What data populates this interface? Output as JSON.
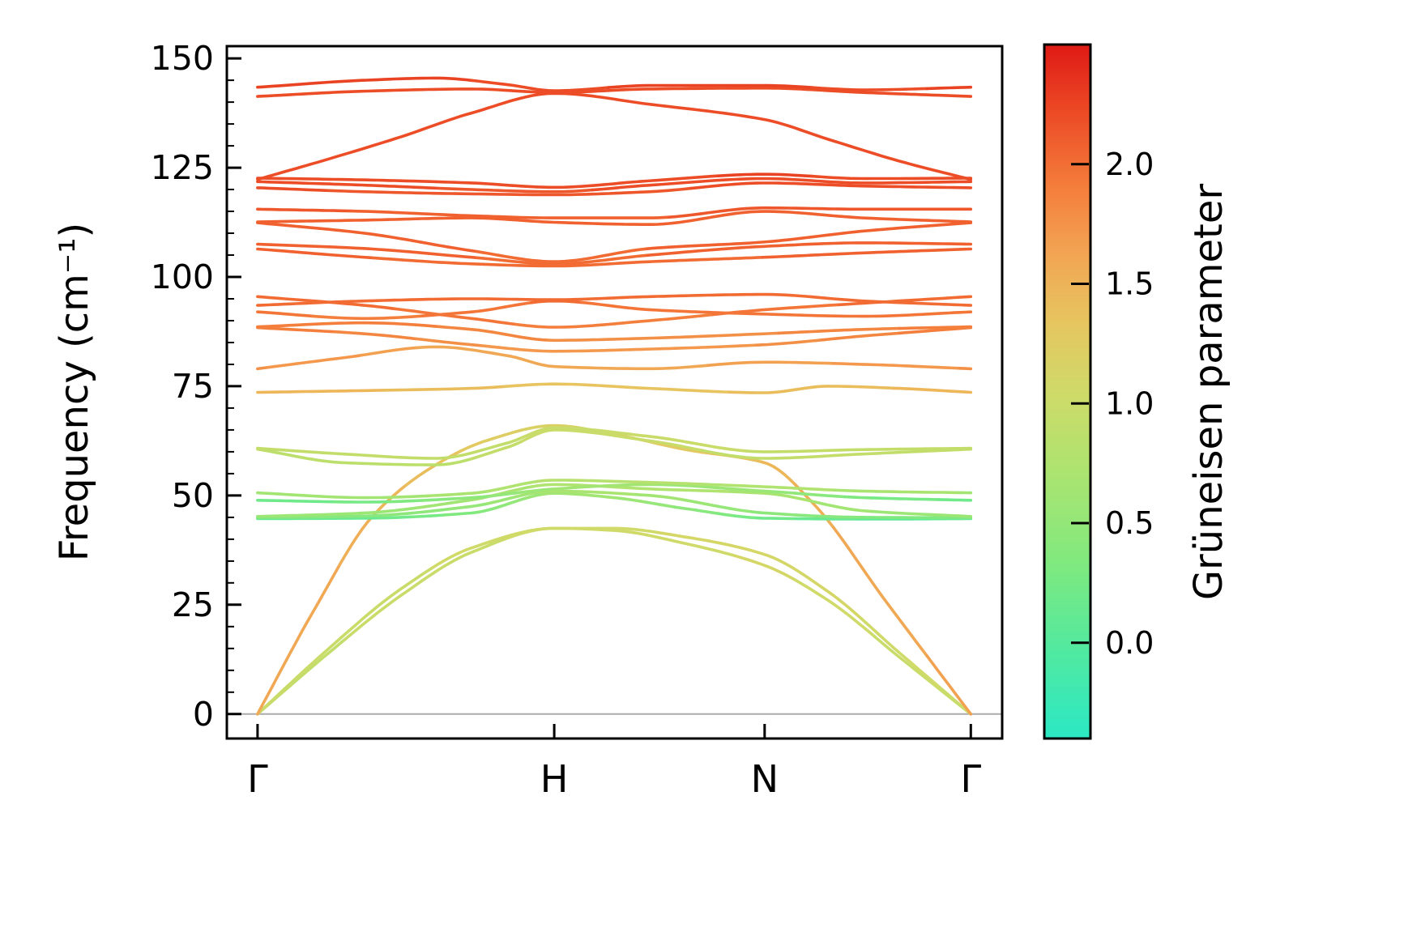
{
  "figure": {
    "background": "#ffffff"
  },
  "chart_data": {
    "type": "line",
    "subtype": "phonon-dispersion-colored-by-gruneisen",
    "title": "",
    "xlabel": "",
    "ylabel": "Frequency (cm⁻¹)",
    "x_tick_labels": [
      "Γ",
      "H",
      "N",
      "Γ"
    ],
    "x_tick_positions": [
      0,
      0.416,
      0.711,
      1.0
    ],
    "y_ticks": [
      0,
      25,
      50,
      75,
      100,
      125,
      150
    ],
    "y_minor_step": 5,
    "ylim": [
      -5.6,
      152.8
    ],
    "xlim": [
      -0.043,
      1.044
    ],
    "grid": false,
    "zero_line_color": "#ababab",
    "line_width": 3.6,
    "colorbar": {
      "label": "Grüneisen parameter",
      "ticks": [
        "0.0",
        "0.5",
        "1.0",
        "1.5",
        "2.0"
      ],
      "tick_values": [
        0.0,
        0.5,
        1.0,
        1.5,
        2.0
      ],
      "vmin": -0.4,
      "vmax": 2.5,
      "gradient_stops": [
        [
          0.0,
          "#2BE8C4"
        ],
        [
          0.12,
          "#4FE9A2"
        ],
        [
          0.25,
          "#7FE97F"
        ],
        [
          0.38,
          "#ABE470"
        ],
        [
          0.5,
          "#CFDA68"
        ],
        [
          0.6,
          "#E6C55F"
        ],
        [
          0.7,
          "#F2A453"
        ],
        [
          0.8,
          "#F47B3A"
        ],
        [
          0.9,
          "#EC4B26"
        ],
        [
          1.0,
          "#DF1A15"
        ]
      ]
    },
    "bands": [
      [
        [
          0,
          0,
          0.95
        ],
        [
          0.1,
          14,
          0.95
        ],
        [
          0.2,
          27,
          1.0
        ],
        [
          0.3,
          37,
          1.0
        ],
        [
          0.416,
          42.5,
          1.05
        ],
        [
          0.5,
          42,
          1.05
        ],
        [
          0.6,
          39,
          1.05
        ],
        [
          0.711,
          34,
          1.1
        ],
        [
          0.8,
          26,
          1.05
        ],
        [
          0.9,
          13,
          1.0
        ],
        [
          1,
          0,
          0.95
        ]
      ],
      [
        [
          0,
          0,
          1.0
        ],
        [
          0.1,
          15,
          1.0
        ],
        [
          0.2,
          28.5,
          1.0
        ],
        [
          0.3,
          38,
          1.05
        ],
        [
          0.416,
          42.5,
          1.05
        ],
        [
          0.5,
          42.5,
          1.05
        ],
        [
          0.6,
          40.5,
          1.1
        ],
        [
          0.711,
          36.5,
          1.1
        ],
        [
          0.8,
          28,
          1.1
        ],
        [
          0.9,
          14,
          1.05
        ],
        [
          1,
          0,
          1.0
        ]
      ],
      [
        [
          0,
          0,
          1.6
        ],
        [
          0.08,
          24,
          1.6
        ],
        [
          0.16,
          45,
          1.5
        ],
        [
          0.24,
          56,
          1.4
        ],
        [
          0.32,
          62.5,
          1.25
        ],
        [
          0.416,
          66,
          1.15
        ],
        [
          0.5,
          64,
          1.2
        ],
        [
          0.6,
          60.5,
          1.3
        ],
        [
          0.711,
          57.5,
          1.45
        ],
        [
          0.78,
          48,
          1.55
        ],
        [
          0.88,
          26,
          1.6
        ],
        [
          1,
          0,
          1.65
        ]
      ],
      [
        [
          0,
          44.7,
          0.1
        ],
        [
          0.15,
          44.8,
          0.15
        ],
        [
          0.3,
          46,
          0.35
        ],
        [
          0.416,
          50.5,
          0.65
        ],
        [
          0.5,
          49.5,
          0.6
        ],
        [
          0.6,
          47,
          0.45
        ],
        [
          0.711,
          44.8,
          0.2
        ],
        [
          0.85,
          44.6,
          0.1
        ],
        [
          1,
          44.7,
          0.1
        ]
      ],
      [
        [
          0,
          44.9,
          0.35
        ],
        [
          0.15,
          45.3,
          0.4
        ],
        [
          0.3,
          47.5,
          0.5
        ],
        [
          0.416,
          51,
          0.7
        ],
        [
          0.55,
          50,
          0.65
        ],
        [
          0.711,
          46,
          0.45
        ],
        [
          0.85,
          45,
          0.35
        ],
        [
          1,
          44.9,
          0.35
        ]
      ],
      [
        [
          0,
          45.2,
          0.55
        ],
        [
          0.15,
          46,
          0.55
        ],
        [
          0.3,
          49,
          0.65
        ],
        [
          0.416,
          52.5,
          0.75
        ],
        [
          0.55,
          51.5,
          0.75
        ],
        [
          0.711,
          50.5,
          0.7
        ],
        [
          0.85,
          46.5,
          0.6
        ],
        [
          1,
          45.2,
          0.55
        ]
      ],
      [
        [
          0,
          48.9,
          0.2
        ],
        [
          0.15,
          48.5,
          0.25
        ],
        [
          0.3,
          49.5,
          0.45
        ],
        [
          0.416,
          51.5,
          0.6
        ],
        [
          0.55,
          52.5,
          0.6
        ],
        [
          0.711,
          51,
          0.55
        ],
        [
          0.85,
          49.5,
          0.3
        ],
        [
          1,
          48.9,
          0.2
        ]
      ],
      [
        [
          0,
          50.6,
          0.65
        ],
        [
          0.15,
          49.5,
          0.6
        ],
        [
          0.3,
          50.5,
          0.7
        ],
        [
          0.416,
          53.5,
          0.8
        ],
        [
          0.55,
          53,
          0.8
        ],
        [
          0.711,
          52,
          0.75
        ],
        [
          0.85,
          51,
          0.7
        ],
        [
          1,
          50.6,
          0.65
        ]
      ],
      [
        [
          0,
          60.6,
          0.9
        ],
        [
          0.12,
          57.5,
          0.85
        ],
        [
          0.25,
          57,
          0.85
        ],
        [
          0.35,
          61,
          0.95
        ],
        [
          0.416,
          65,
          1.0
        ],
        [
          0.55,
          62.5,
          1.0
        ],
        [
          0.711,
          58.5,
          0.9
        ],
        [
          0.85,
          59.5,
          0.9
        ],
        [
          1,
          60.6,
          0.9
        ]
      ],
      [
        [
          0,
          60.8,
          0.95
        ],
        [
          0.12,
          59.5,
          0.9
        ],
        [
          0.25,
          58.5,
          0.9
        ],
        [
          0.35,
          62,
          0.95
        ],
        [
          0.416,
          65.5,
          1.0
        ],
        [
          0.55,
          63.5,
          1.0
        ],
        [
          0.711,
          60,
          0.95
        ],
        [
          0.85,
          60.5,
          0.95
        ],
        [
          1,
          60.8,
          0.95
        ]
      ],
      [
        [
          0,
          73.6,
          1.45
        ],
        [
          0.15,
          74,
          1.45
        ],
        [
          0.3,
          74.5,
          1.4
        ],
        [
          0.416,
          75.5,
          1.35
        ],
        [
          0.55,
          74.5,
          1.35
        ],
        [
          0.711,
          73.5,
          1.4
        ],
        [
          0.8,
          75,
          1.4
        ],
        [
          0.9,
          74.5,
          1.45
        ],
        [
          1,
          73.6,
          1.45
        ]
      ],
      [
        [
          0,
          79,
          1.75
        ],
        [
          0.12,
          81.5,
          1.7
        ],
        [
          0.25,
          84,
          1.6
        ],
        [
          0.35,
          82,
          1.6
        ],
        [
          0.416,
          79.5,
          1.6
        ],
        [
          0.55,
          79,
          1.6
        ],
        [
          0.711,
          80.5,
          1.65
        ],
        [
          0.85,
          80,
          1.7
        ],
        [
          1,
          79,
          1.75
        ]
      ],
      [
        [
          0,
          88.4,
          1.9
        ],
        [
          0.15,
          87,
          1.85
        ],
        [
          0.3,
          84.5,
          1.75
        ],
        [
          0.416,
          83,
          1.7
        ],
        [
          0.55,
          83.5,
          1.7
        ],
        [
          0.711,
          84.5,
          1.75
        ],
        [
          0.85,
          86.5,
          1.85
        ],
        [
          1,
          88.4,
          1.9
        ]
      ],
      [
        [
          0,
          88.6,
          1.9
        ],
        [
          0.15,
          89.5,
          1.9
        ],
        [
          0.3,
          88,
          1.85
        ],
        [
          0.416,
          85.5,
          1.8
        ],
        [
          0.55,
          86,
          1.8
        ],
        [
          0.711,
          87,
          1.8
        ],
        [
          0.85,
          88,
          1.85
        ],
        [
          1,
          88.6,
          1.9
        ]
      ],
      [
        [
          0,
          92,
          1.95
        ],
        [
          0.15,
          90.5,
          1.9
        ],
        [
          0.3,
          92,
          1.95
        ],
        [
          0.416,
          94.5,
          2.0
        ],
        [
          0.55,
          92.5,
          1.95
        ],
        [
          0.711,
          91.5,
          1.95
        ],
        [
          0.85,
          91,
          1.95
        ],
        [
          1,
          92,
          1.95
        ]
      ],
      [
        [
          0,
          93.5,
          2.0
        ],
        [
          0.15,
          94.5,
          2.0
        ],
        [
          0.3,
          95,
          2.0
        ],
        [
          0.416,
          94.8,
          2.0
        ],
        [
          0.55,
          95.5,
          2.0
        ],
        [
          0.711,
          96,
          2.0
        ],
        [
          0.85,
          94.5,
          2.0
        ],
        [
          1,
          93.5,
          2.0
        ]
      ],
      [
        [
          0,
          95.5,
          2.0
        ],
        [
          0.15,
          93.5,
          2.0
        ],
        [
          0.3,
          90.5,
          1.95
        ],
        [
          0.416,
          88.5,
          1.9
        ],
        [
          0.55,
          90,
          1.9
        ],
        [
          0.711,
          92.5,
          1.95
        ],
        [
          0.85,
          94,
          2.0
        ],
        [
          1,
          95.5,
          2.0
        ]
      ],
      [
        [
          0,
          106.4,
          2.05
        ],
        [
          0.15,
          104.5,
          2.05
        ],
        [
          0.3,
          103,
          2.0
        ],
        [
          0.416,
          102.5,
          2.0
        ],
        [
          0.55,
          103.5,
          2.0
        ],
        [
          0.711,
          104.5,
          2.05
        ],
        [
          0.85,
          105.5,
          2.05
        ],
        [
          1,
          106.4,
          2.05
        ]
      ],
      [
        [
          0,
          107.5,
          2.1
        ],
        [
          0.15,
          106.5,
          2.05
        ],
        [
          0.3,
          104.5,
          2.05
        ],
        [
          0.416,
          103,
          2.0
        ],
        [
          0.55,
          105,
          2.05
        ],
        [
          0.711,
          107,
          2.1
        ],
        [
          0.85,
          107.8,
          2.1
        ],
        [
          1,
          107.5,
          2.1
        ]
      ],
      [
        [
          0,
          112.4,
          2.1
        ],
        [
          0.15,
          110,
          2.1
        ],
        [
          0.3,
          106,
          2.05
        ],
        [
          0.416,
          103.5,
          2.0
        ],
        [
          0.55,
          106.5,
          2.05
        ],
        [
          0.711,
          108,
          2.1
        ],
        [
          0.85,
          110.5,
          2.1
        ],
        [
          1,
          112.4,
          2.1
        ]
      ],
      [
        [
          0,
          112.6,
          2.1
        ],
        [
          0.15,
          113,
          2.1
        ],
        [
          0.3,
          113.5,
          2.1
        ],
        [
          0.416,
          112.5,
          2.1
        ],
        [
          0.55,
          112,
          2.1
        ],
        [
          0.711,
          115,
          2.1
        ],
        [
          0.85,
          113.5,
          2.1
        ],
        [
          1,
          112.6,
          2.1
        ]
      ],
      [
        [
          0,
          115.5,
          2.15
        ],
        [
          0.15,
          115,
          2.1
        ],
        [
          0.3,
          114,
          2.1
        ],
        [
          0.416,
          113.5,
          2.1
        ],
        [
          0.55,
          113.5,
          2.1
        ],
        [
          0.711,
          115.8,
          2.15
        ],
        [
          0.85,
          115.5,
          2.15
        ],
        [
          1,
          115.5,
          2.15
        ]
      ],
      [
        [
          0,
          120.4,
          2.2
        ],
        [
          0.15,
          119.5,
          2.15
        ],
        [
          0.3,
          119,
          2.15
        ],
        [
          0.416,
          118.8,
          2.15
        ],
        [
          0.55,
          119.5,
          2.15
        ],
        [
          0.711,
          121.5,
          2.2
        ],
        [
          0.85,
          120.8,
          2.2
        ],
        [
          1,
          120.4,
          2.2
        ]
      ],
      [
        [
          0,
          121.8,
          2.2
        ],
        [
          0.15,
          121,
          2.2
        ],
        [
          0.3,
          120,
          2.15
        ],
        [
          0.416,
          119.5,
          2.15
        ],
        [
          0.55,
          121,
          2.2
        ],
        [
          0.711,
          122.5,
          2.2
        ],
        [
          0.85,
          121.5,
          2.2
        ],
        [
          1,
          121.8,
          2.2
        ]
      ],
      [
        [
          0,
          122.6,
          2.2
        ],
        [
          0.15,
          122.2,
          2.2
        ],
        [
          0.3,
          121.5,
          2.2
        ],
        [
          0.416,
          120.5,
          2.2
        ],
        [
          0.55,
          122,
          2.2
        ],
        [
          0.711,
          123.5,
          2.25
        ],
        [
          0.85,
          122.5,
          2.2
        ],
        [
          1,
          122.6,
          2.2
        ]
      ],
      [
        [
          0,
          122.3,
          2.2
        ],
        [
          0.1,
          127,
          2.2
        ],
        [
          0.2,
          132,
          2.2
        ],
        [
          0.3,
          137.5,
          2.2
        ],
        [
          0.416,
          142,
          2.2
        ],
        [
          0.55,
          139.5,
          2.2
        ],
        [
          0.711,
          136,
          2.2
        ],
        [
          0.8,
          131.5,
          2.2
        ],
        [
          0.9,
          126.5,
          2.2
        ],
        [
          1,
          122.3,
          2.2
        ]
      ],
      [
        [
          0,
          141.3,
          2.2
        ],
        [
          0.15,
          142.5,
          2.2
        ],
        [
          0.3,
          143,
          2.2
        ],
        [
          0.416,
          142.2,
          2.2
        ],
        [
          0.55,
          143,
          2.2
        ],
        [
          0.711,
          143.2,
          2.2
        ],
        [
          0.85,
          142.2,
          2.2
        ],
        [
          1,
          141.3,
          2.2
        ]
      ],
      [
        [
          0,
          143.4,
          2.25
        ],
        [
          0.15,
          145,
          2.25
        ],
        [
          0.25,
          145.5,
          2.25
        ],
        [
          0.35,
          144,
          2.2
        ],
        [
          0.416,
          142.6,
          2.2
        ],
        [
          0.55,
          143.8,
          2.25
        ],
        [
          0.711,
          143.8,
          2.25
        ],
        [
          0.85,
          142.8,
          2.2
        ],
        [
          1,
          143.4,
          2.25
        ]
      ]
    ]
  }
}
